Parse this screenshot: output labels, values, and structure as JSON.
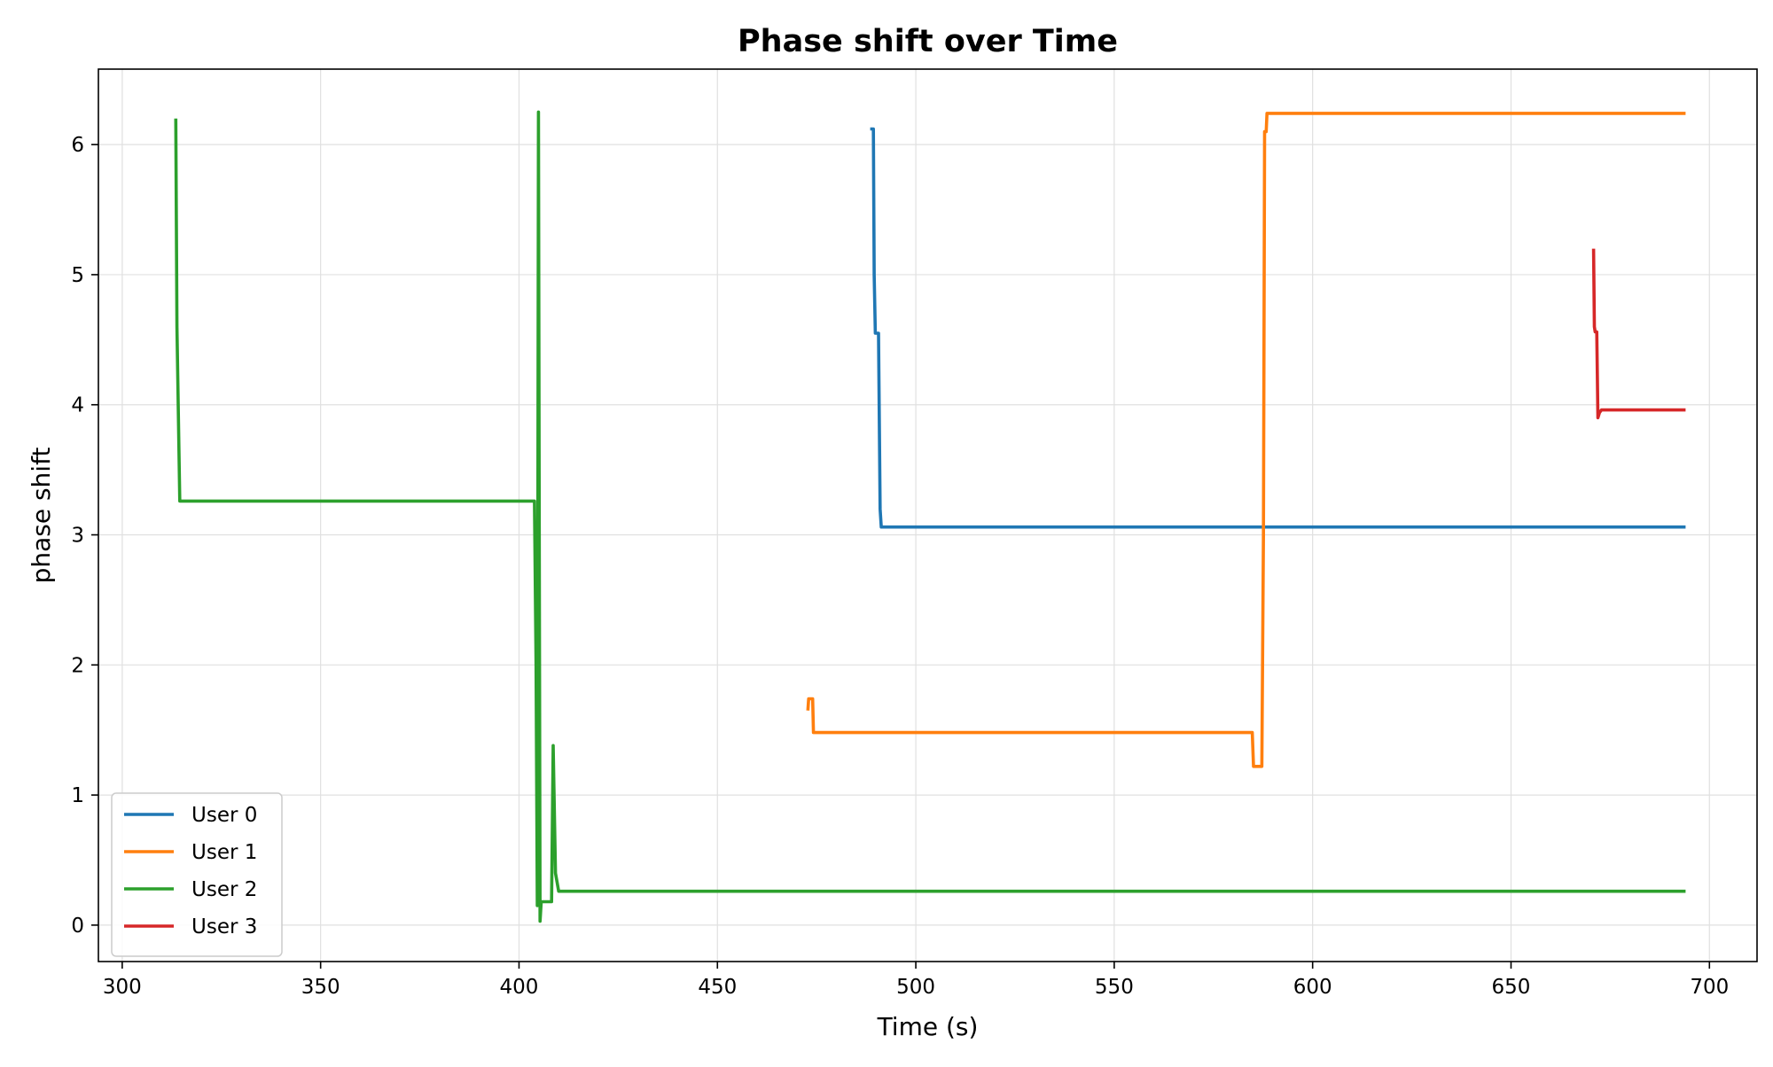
{
  "chart_data": {
    "type": "line",
    "title": "Phase shift over Time",
    "xlabel": "Time (s)",
    "ylabel": "phase shift",
    "xlim": [
      294,
      712
    ],
    "ylim": [
      -0.28,
      6.58
    ],
    "xticks": [
      300,
      350,
      400,
      450,
      500,
      550,
      600,
      650,
      700
    ],
    "yticks": [
      0,
      1,
      2,
      3,
      4,
      5,
      6
    ],
    "grid": true,
    "legend_position": "lower-left",
    "series": [
      {
        "name": "User 0",
        "color": "#1f77b4",
        "points": [
          [
            488.5,
            6.12
          ],
          [
            489.3,
            6.12
          ],
          [
            489.5,
            5.0
          ],
          [
            489.8,
            4.55
          ],
          [
            490.6,
            4.55
          ],
          [
            491.0,
            3.2
          ],
          [
            491.3,
            3.06
          ],
          [
            694,
            3.06
          ]
        ]
      },
      {
        "name": "User 1",
        "color": "#ff7f0e",
        "points": [
          [
            472.8,
            1.65
          ],
          [
            473.0,
            1.74
          ],
          [
            474.0,
            1.74
          ],
          [
            474.2,
            1.48
          ],
          [
            584.8,
            1.48
          ],
          [
            585.1,
            1.22
          ],
          [
            587.2,
            1.22
          ],
          [
            587.6,
            3.0
          ],
          [
            587.9,
            6.1
          ],
          [
            588.3,
            6.1
          ],
          [
            588.5,
            6.24
          ],
          [
            694,
            6.24
          ]
        ]
      },
      {
        "name": "User 2",
        "color": "#2ca02c",
        "points": [
          [
            313.5,
            6.2
          ],
          [
            313.8,
            4.6
          ],
          [
            314.5,
            3.26
          ],
          [
            403.9,
            3.26
          ],
          [
            404.3,
            2.0
          ],
          [
            404.6,
            0.15
          ],
          [
            404.9,
            6.25
          ],
          [
            405.1,
            3.0
          ],
          [
            405.3,
            0.03
          ],
          [
            405.6,
            0.18
          ],
          [
            408.2,
            0.18
          ],
          [
            408.6,
            1.38
          ],
          [
            409.2,
            0.4
          ],
          [
            410.0,
            0.26
          ],
          [
            694,
            0.26
          ]
        ]
      },
      {
        "name": "User 3",
        "color": "#d62728",
        "points": [
          [
            670.8,
            5.2
          ],
          [
            671.0,
            4.6
          ],
          [
            671.2,
            4.56
          ],
          [
            671.6,
            4.56
          ],
          [
            671.9,
            3.9
          ],
          [
            672.3,
            3.94
          ],
          [
            672.8,
            3.96
          ],
          [
            694,
            3.96
          ]
        ]
      }
    ]
  }
}
